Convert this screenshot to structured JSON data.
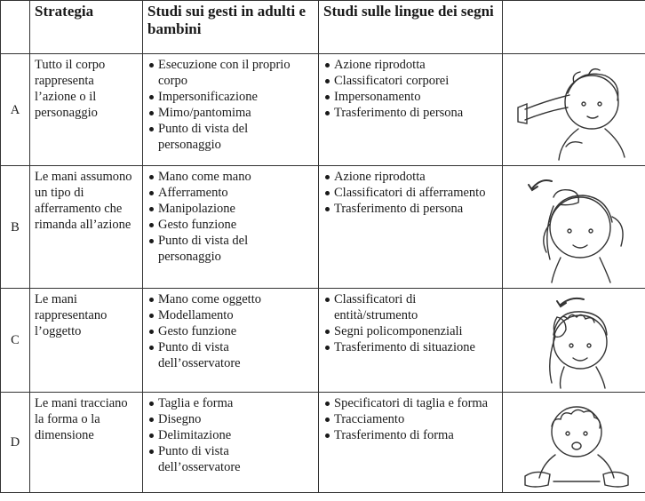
{
  "table": {
    "header": {
      "strategy": "Strategia",
      "gesture_studies": "Studi sui gesti in adulti e bambini",
      "sign_studies": "Studi sulle lingue dei segni"
    },
    "rows": [
      {
        "label": "A",
        "strategy": "Tutto il corpo rappresenta l’azione o il personaggio",
        "gesture_studies": [
          "Esecuzione con il proprio corpo",
          "Impersonificazione",
          "Mimo/pantomima",
          "Punto di vista del personaggio"
        ],
        "sign_studies": [
          "Azione riprodotta",
          "Classificatori corporei",
          "Impersonamento",
          "Trasferimento di persona"
        ]
      },
      {
        "label": "B",
        "strategy": "Le mani assumono un tipo di afferramento che rimanda all’azione",
        "gesture_studies": [
          "Mano come mano",
          "Afferramento",
          "Manipolazione",
          "Gesto funzione",
          "Punto di vista del personaggio"
        ],
        "sign_studies": [
          "Azione riprodotta",
          "Classificatori di afferramento",
          "Trasferimento di persona"
        ]
      },
      {
        "label": "C",
        "strategy": "Le mani rappresentano l’oggetto",
        "gesture_studies": [
          "Mano come oggetto",
          "Modellamento",
          "Gesto funzione",
          "Punto di vista dell’osservatore"
        ],
        "sign_studies": [
          "Classificatori di entità/strumento",
          "Segni policomponenziali",
          "Trasferimento di situazione"
        ]
      },
      {
        "label": "D",
        "strategy": "Le mani tracciano la forma o la dimensione",
        "gesture_studies": [
          "Taglia e forma",
          "Disegno",
          "Delimitazione",
          "Punto di vista dell’osservatore"
        ],
        "sign_studies": [
          "Specificatori di taglia e forma",
          "Tracciamento",
          "Trasferimento di forma"
        ]
      }
    ]
  }
}
